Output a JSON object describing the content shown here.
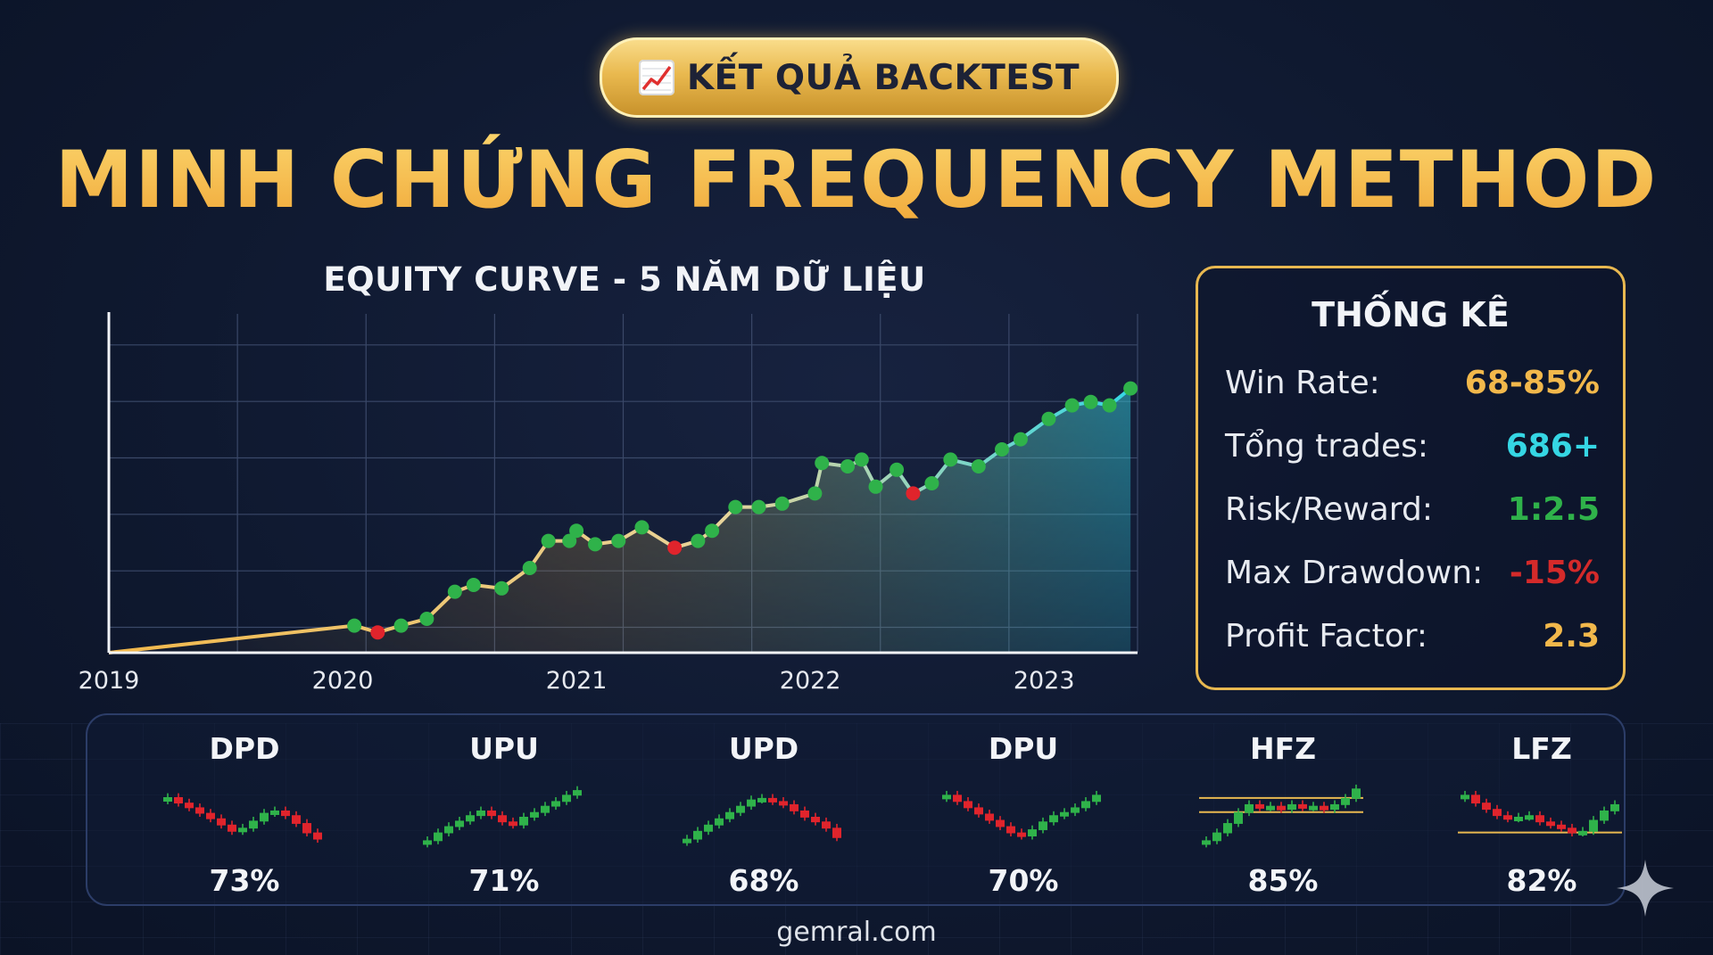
{
  "badge": {
    "icon": "chart-increasing-emoji",
    "text": "KẾT QUẢ BACKTEST"
  },
  "title": "MINH CHỨNG FREQUENCY METHOD",
  "chart_data": {
    "type": "area",
    "title": "EQUITY CURVE - 5 NĂM DỮ LIỆU",
    "x_ticks": [
      "2019",
      "2020",
      "2021",
      "2022",
      "2023"
    ],
    "xlim": [
      2019.0,
      2023.4
    ],
    "ylim": [
      0,
      100
    ],
    "grid": true,
    "colors": {
      "start": "#f2b84b",
      "end": "#35d6e4",
      "win_marker": "#2fb24a",
      "loss_marker": "#e0242c"
    },
    "points": [
      {
        "x": 2019.0,
        "y": 0
      },
      {
        "x": 2020.05,
        "y": 8
      },
      {
        "x": 2020.15,
        "y": 6,
        "loss": true
      },
      {
        "x": 2020.25,
        "y": 8
      },
      {
        "x": 2020.36,
        "y": 10
      },
      {
        "x": 2020.48,
        "y": 18
      },
      {
        "x": 2020.56,
        "y": 20
      },
      {
        "x": 2020.68,
        "y": 19
      },
      {
        "x": 2020.8,
        "y": 25
      },
      {
        "x": 2020.88,
        "y": 33
      },
      {
        "x": 2020.97,
        "y": 33
      },
      {
        "x": 2021.0,
        "y": 36
      },
      {
        "x": 2021.08,
        "y": 32
      },
      {
        "x": 2021.18,
        "y": 33
      },
      {
        "x": 2021.28,
        "y": 37
      },
      {
        "x": 2021.42,
        "y": 31,
        "loss": true
      },
      {
        "x": 2021.52,
        "y": 33
      },
      {
        "x": 2021.58,
        "y": 36
      },
      {
        "x": 2021.68,
        "y": 43
      },
      {
        "x": 2021.78,
        "y": 43
      },
      {
        "x": 2021.88,
        "y": 44
      },
      {
        "x": 2022.02,
        "y": 47
      },
      {
        "x": 2022.05,
        "y": 56
      },
      {
        "x": 2022.16,
        "y": 55
      },
      {
        "x": 2022.22,
        "y": 57
      },
      {
        "x": 2022.28,
        "y": 49
      },
      {
        "x": 2022.37,
        "y": 54
      },
      {
        "x": 2022.44,
        "y": 47,
        "loss": true
      },
      {
        "x": 2022.52,
        "y": 50
      },
      {
        "x": 2022.6,
        "y": 57
      },
      {
        "x": 2022.72,
        "y": 55
      },
      {
        "x": 2022.82,
        "y": 60
      },
      {
        "x": 2022.9,
        "y": 63
      },
      {
        "x": 2023.02,
        "y": 69
      },
      {
        "x": 2023.12,
        "y": 73
      },
      {
        "x": 2023.2,
        "y": 74
      },
      {
        "x": 2023.28,
        "y": 73
      },
      {
        "x": 2023.37,
        "y": 78
      }
    ]
  },
  "stats": {
    "title": "THỐNG KÊ",
    "rows": [
      {
        "label": "Win Rate:",
        "value": "68-85%",
        "color": "#f2b84b"
      },
      {
        "label": "Tổng trades:",
        "value": "686+",
        "color": "#35d6e4"
      },
      {
        "label": "Risk/Reward:",
        "value": "1:2.5",
        "color": "#2fb24a"
      },
      {
        "label": "Max Drawdown:",
        "value": "-15%",
        "color": "#d42a2a"
      },
      {
        "label": "Profit Factor:",
        "value": "2.3",
        "color": "#f2b84b"
      }
    ]
  },
  "patterns": [
    {
      "name": "DPD",
      "rate": "73%",
      "value": 73,
      "shape": [
        75,
        68,
        62,
        55,
        48,
        40,
        32,
        36,
        45,
        55,
        58,
        52,
        42,
        30,
        22
      ]
    },
    {
      "name": "UPU",
      "rate": "71%",
      "value": 71,
      "shape": [
        20,
        30,
        38,
        45,
        52,
        58,
        52,
        44,
        40,
        50,
        56,
        64,
        70,
        78,
        84
      ]
    },
    {
      "name": "UPD",
      "rate": "68%",
      "value": 68,
      "shape": [
        22,
        32,
        40,
        48,
        56,
        64,
        72,
        74,
        70,
        66,
        58,
        50,
        44,
        36,
        24
      ]
    },
    {
      "name": "DPU",
      "rate": "70%",
      "value": 70,
      "shape": [
        78,
        70,
        62,
        54,
        46,
        38,
        30,
        26,
        34,
        44,
        52,
        56,
        62,
        70,
        78
      ]
    },
    {
      "name": "HFZ",
      "rate": "85%",
      "value": 85,
      "shape": [
        20,
        30,
        42,
        56,
        66,
        62,
        64,
        60,
        66,
        62,
        64,
        60,
        66,
        74,
        86
      ],
      "zone": [
        56,
        74
      ]
    },
    {
      "name": "LFZ",
      "rate": "82%",
      "value": 82,
      "shape": [
        78,
        68,
        60,
        52,
        48,
        50,
        52,
        44,
        40,
        36,
        30,
        32,
        46,
        58,
        66
      ],
      "zone": [
        30
      ]
    }
  ],
  "footer": "gemral.com"
}
